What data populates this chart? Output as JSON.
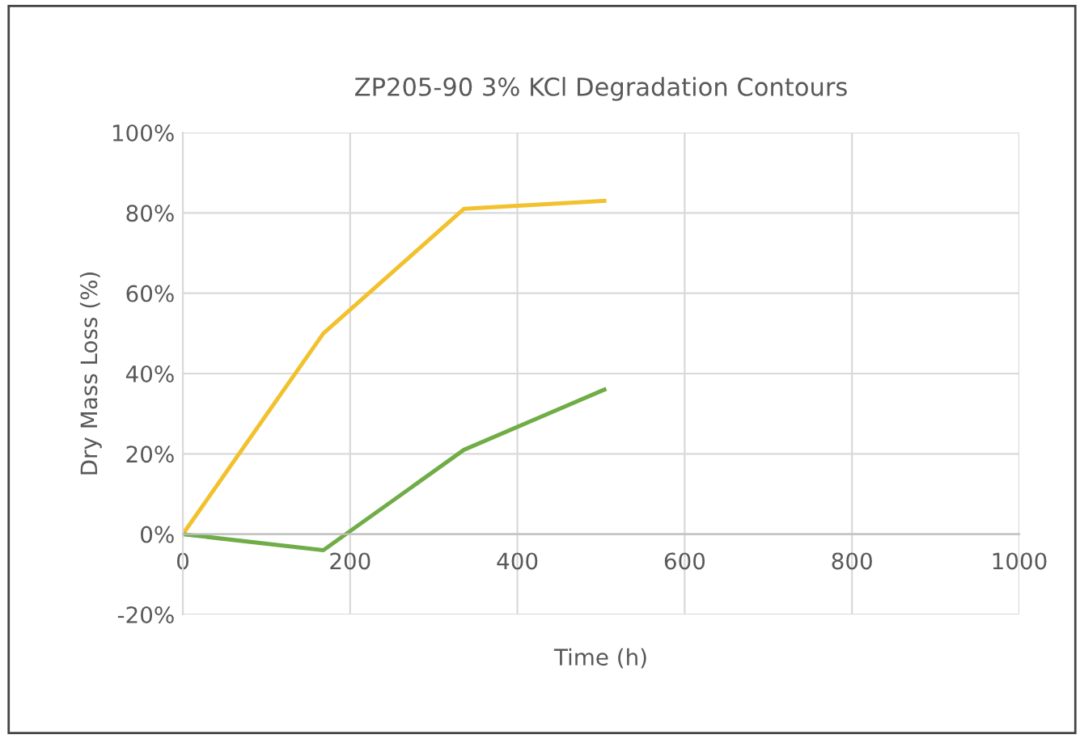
{
  "chart_data": {
    "type": "line",
    "title": "ZP205-90 3% KCl Degradation Contours",
    "xlabel": "Time (h)",
    "ylabel": "Dry Mass Loss (%)",
    "x": [
      0,
      168,
      336,
      504
    ],
    "series": [
      {
        "color": "#f2c12e",
        "values": [
          0,
          50,
          81,
          83
        ]
      },
      {
        "color": "#70ad47",
        "values": [
          0,
          -4,
          21,
          36
        ]
      }
    ],
    "xlim": [
      0,
      1000
    ],
    "xticks": [
      0,
      200,
      400,
      600,
      800,
      1000
    ],
    "ylim": [
      -20,
      100
    ],
    "yticks": [
      {
        "value": -20,
        "label": "-20%"
      },
      {
        "value": 0,
        "label": "0%"
      },
      {
        "value": 20,
        "label": "20%"
      },
      {
        "value": 40,
        "label": "40%"
      },
      {
        "value": 60,
        "label": "60%"
      },
      {
        "value": 80,
        "label": "80%"
      },
      {
        "value": 100,
        "label": "100%"
      }
    ],
    "grid": true,
    "legend": false,
    "marker": "none",
    "line_style": "solid"
  }
}
